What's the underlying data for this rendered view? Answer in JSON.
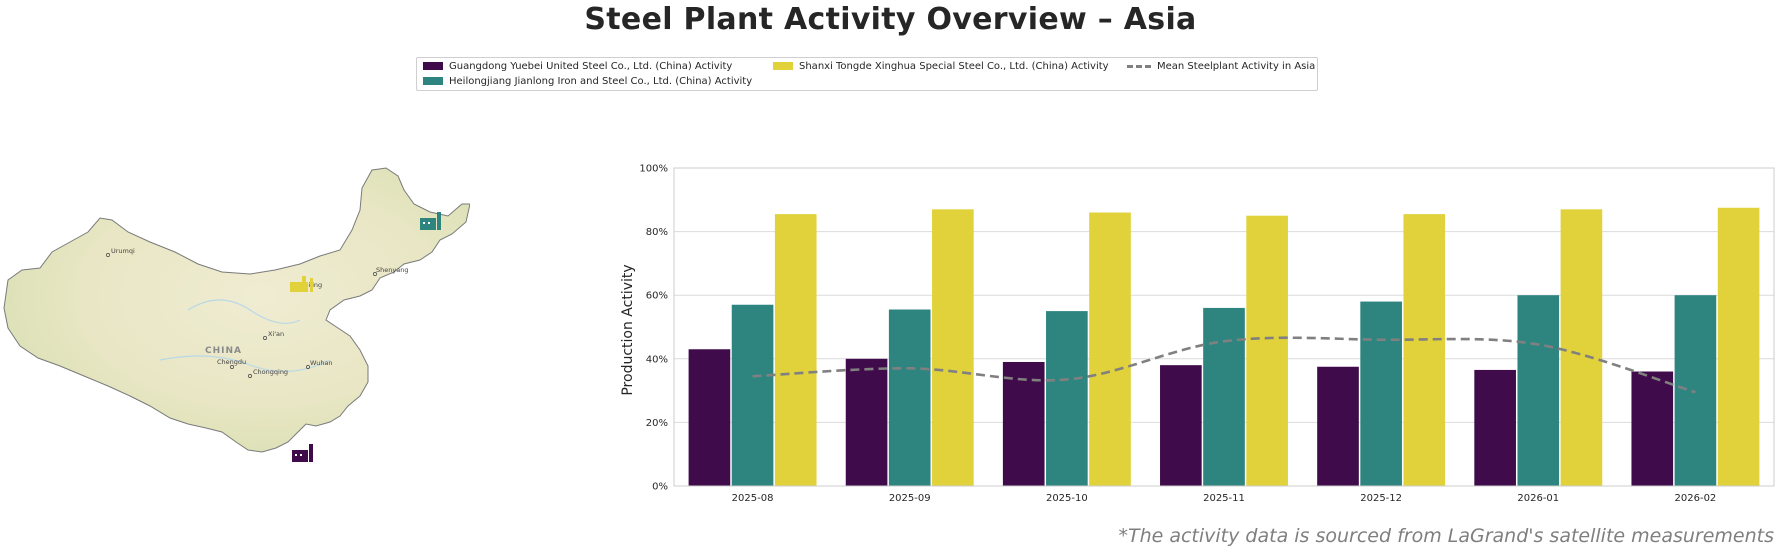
{
  "title": "Steel Plant Activity Overview – Asia",
  "footnote": "*The activity data is sourced from LaGrand's satellite measurements",
  "legend": {
    "items": [
      {
        "label": "Guangdong Yuebei United Steel Co., Ltd. (China) Activity",
        "color": "#3f0b4a",
        "kind": "bar"
      },
      {
        "label": "Heilongjiang Jianlong Iron and Steel Co., Ltd. (China) Activity",
        "color": "#2e8580",
        "kind": "bar"
      },
      {
        "label": "Shanxi Tongde Xinghua Special Steel Co., Ltd. (China) Activity",
        "color": "#e1d23c",
        "kind": "bar"
      },
      {
        "label": "Mean Steelplant Activity in Asia",
        "color": "#808080",
        "kind": "dashed-line"
      }
    ]
  },
  "map": {
    "country_label": "CHINA",
    "cities": [
      "Urumqi",
      "Beijing",
      "Shenyang",
      "Xi'an",
      "Chengdu",
      "Chongqing",
      "Wuhan"
    ],
    "plant_icon_colors": [
      "#3f0b4a",
      "#2e8580",
      "#e1d23c"
    ]
  },
  "chart_data": {
    "type": "bar",
    "categories": [
      "2025-08",
      "2025-09",
      "2025-10",
      "2025-11",
      "2025-12",
      "2026-01",
      "2026-02"
    ],
    "series": [
      {
        "name": "Guangdong Yuebei United Steel Co., Ltd. (China) Activity",
        "color": "#3f0b4a",
        "values": [
          43,
          40,
          39,
          38,
          37.5,
          36.5,
          36
        ]
      },
      {
        "name": "Heilongjiang Jianlong Iron and Steel Co., Ltd. (China) Activity",
        "color": "#2e8580",
        "values": [
          57,
          55.5,
          55,
          56,
          58,
          60,
          60
        ]
      },
      {
        "name": "Shanxi Tongde Xinghua Special Steel Co., Ltd. (China) Activity",
        "color": "#e1d23c",
        "values": [
          85.5,
          87,
          86,
          85,
          85.5,
          87,
          87.5
        ]
      }
    ],
    "mean_line": {
      "name": "Mean Steelplant Activity in Asia",
      "color": "#808080",
      "style": "dashed",
      "values": [
        34.5,
        37,
        33.5,
        45.5,
        46,
        44.5,
        29.5
      ]
    },
    "ylabel": "Production Activity",
    "xlabel": "",
    "ylim": [
      0,
      100
    ],
    "yticks": [
      "0%",
      "20%",
      "40%",
      "60%",
      "80%",
      "100%"
    ],
    "ytick_values": [
      0,
      20,
      40,
      60,
      80,
      100
    ],
    "grid": "horizontal"
  }
}
